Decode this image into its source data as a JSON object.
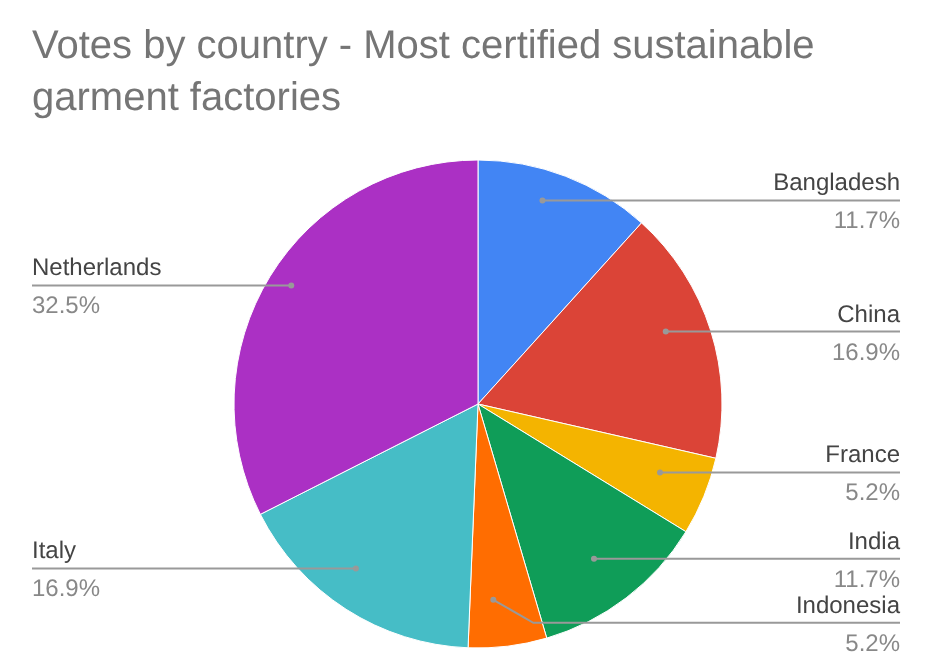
{
  "chart_data": {
    "type": "pie",
    "title": "Votes by country - Most certified sustainable garment factories",
    "categories": [
      "Bangladesh",
      "China",
      "France",
      "India",
      "Indonesia",
      "Italy",
      "Netherlands"
    ],
    "values": [
      11.7,
      16.9,
      5.2,
      11.7,
      5.2,
      16.9,
      32.5
    ],
    "value_labels": [
      "11.7%",
      "16.9%",
      "5.2%",
      "11.7%",
      "5.2%",
      "16.9%",
      "32.5%"
    ],
    "colors": [
      "#4285f4",
      "#db4437",
      "#f4b400",
      "#0f9d58",
      "#ff6d01",
      "#46bdc6",
      "#ab30c4"
    ],
    "legend": false
  }
}
